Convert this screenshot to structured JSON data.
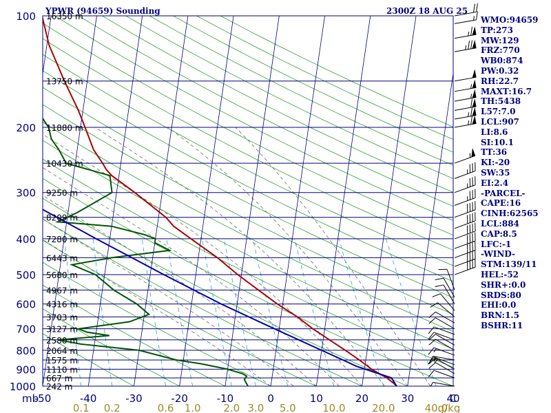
{
  "chart_data": {
    "type": "line",
    "title_left": "YPWR (94659) Sounding",
    "title_right": "2300Z 18 AUG 25",
    "x_axis": {
      "unit_label": "mb",
      "ticks": [
        "-50",
        "-40",
        "-30",
        "-20",
        "-10",
        "0",
        "10",
        "20",
        "30",
        "40",
        "C"
      ],
      "tick_values": [
        -50,
        -40,
        -30,
        -20,
        -10,
        0,
        10,
        20,
        30,
        40
      ],
      "range": [
        -50,
        40
      ]
    },
    "y_axis": {
      "scale": "log-pressure",
      "range": [
        1000,
        100
      ],
      "pressure_labels": [
        "100",
        "200",
        "300",
        "400",
        "500",
        "600",
        "700",
        "800",
        "900",
        "1000"
      ],
      "pressure_values": [
        100,
        200,
        300,
        400,
        500,
        600,
        700,
        800,
        900,
        1000
      ]
    },
    "height_labels": [
      {
        "text": "16350 m",
        "p": 100
      },
      {
        "text": "13750 m",
        "p": 150
      },
      {
        "text": "11880 m",
        "p": 200
      },
      {
        "text": "10430 m",
        "p": 250
      },
      {
        "text": "9250 m",
        "p": 300
      },
      {
        "text": "8209 m",
        "p": 350
      },
      {
        "text": "7280 m",
        "p": 400
      },
      {
        "text": "6443 m",
        "p": 450
      },
      {
        "text": "5680 m",
        "p": 500
      },
      {
        "text": "4967 m",
        "p": 550
      },
      {
        "text": "4316 m",
        "p": 600
      },
      {
        "text": "3703 m",
        "p": 650
      },
      {
        "text": "3127 m",
        "p": 700
      },
      {
        "text": "2580 m",
        "p": 750
      },
      {
        "text": "2064 m",
        "p": 800
      },
      {
        "text": "1575 m",
        "p": 850
      },
      {
        "text": "1110 m",
        "p": 900
      },
      {
        "text": "667 m",
        "p": 950
      },
      {
        "text": "242 m",
        "p": 1000
      }
    ],
    "mixing_ratio_labels": [
      {
        "text": "0.1",
        "value": 0.1
      },
      {
        "text": "0.2",
        "value": 0.2
      },
      {
        "text": "0.6",
        "value": 0.6
      },
      {
        "text": "1.0",
        "value": 1.0
      },
      {
        "text": "2.0",
        "value": 2.0
      },
      {
        "text": "3.0",
        "value": 3.0
      },
      {
        "text": "5.0",
        "value": 5.0
      },
      {
        "text": "10.0",
        "value": 10.0
      },
      {
        "text": "20.0",
        "value": 20.0
      },
      {
        "text": "40.0",
        "value": 40.0
      },
      {
        "text": "g/kg",
        "value": null
      }
    ],
    "series": [
      {
        "name": "",
        "color": "#aa0000",
        "points": [
          {
            "p": 1000,
            "t": 27.6
          },
          {
            "p": 985,
            "t": 27.0
          },
          {
            "p": 950,
            "t": 25.2
          },
          {
            "p": 925,
            "t": 23.4
          },
          {
            "p": 900,
            "t": 21.6
          },
          {
            "p": 850,
            "t": 18.6
          },
          {
            "p": 800,
            "t": 15.2
          },
          {
            "p": 750,
            "t": 11.4
          },
          {
            "p": 700,
            "t": 7.4
          },
          {
            "p": 650,
            "t": 3.6
          },
          {
            "p": 600,
            "t": -1.2
          },
          {
            "p": 550,
            "t": -5.8
          },
          {
            "p": 500,
            "t": -10.8
          },
          {
            "p": 450,
            "t": -15.8
          },
          {
            "p": 400,
            "t": -22.2
          },
          {
            "p": 370,
            "t": -26.4
          },
          {
            "p": 350,
            "t": -28.4
          },
          {
            "p": 300,
            "t": -36.0
          },
          {
            "p": 270,
            "t": -41.6
          },
          {
            "p": 260,
            "t": -43.0
          },
          {
            "p": 250,
            "t": -44.0
          },
          {
            "p": 230,
            "t": -46.4
          },
          {
            "p": 200,
            "t": -49.0
          },
          {
            "p": 180,
            "t": -51.0
          },
          {
            "p": 150,
            "t": -55.0
          },
          {
            "p": 120,
            "t": -59.5
          },
          {
            "p": 100,
            "t": -62.0
          },
          {
            "p": 96,
            "t": -63.0
          }
        ]
      },
      {
        "name": "",
        "color": "#005500",
        "points": [
          {
            "p": 1000,
            "td": -5.0
          },
          {
            "p": 960,
            "td": -6.0
          },
          {
            "p": 940,
            "td": -5.6
          },
          {
            "p": 925,
            "td": -6.6
          },
          {
            "p": 900,
            "td": -10.0
          },
          {
            "p": 870,
            "td": -16.0
          },
          {
            "p": 850,
            "td": -21.5
          },
          {
            "p": 800,
            "td": -30.0
          },
          {
            "p": 770,
            "td": -43.0
          },
          {
            "p": 750,
            "td": -48.0
          },
          {
            "p": 730,
            "td": -37.0
          },
          {
            "p": 715,
            "td": -42.0
          },
          {
            "p": 700,
            "td": -44.0
          },
          {
            "p": 670,
            "td": -33.0
          },
          {
            "p": 640,
            "td": -29.0
          },
          {
            "p": 600,
            "td": -32.0
          },
          {
            "p": 550,
            "td": -37.5
          },
          {
            "p": 500,
            "td": -42.0
          },
          {
            "p": 470,
            "td": -47.5
          },
          {
            "p": 450,
            "td": -39.0
          },
          {
            "p": 430,
            "td": -26.5
          },
          {
            "p": 410,
            "td": -30.0
          },
          {
            "p": 400,
            "td": -30.0
          },
          {
            "p": 390,
            "td": -32.5
          },
          {
            "p": 370,
            "td": -40.0
          },
          {
            "p": 360,
            "td": -52.0
          },
          {
            "p": 340,
            "td": -48.0
          },
          {
            "p": 300,
            "td": -41.0
          },
          {
            "p": 270,
            "td": -42.0
          },
          {
            "p": 250,
            "td": -52.0
          },
          {
            "p": 230,
            "td": -54.0
          },
          {
            "p": 215,
            "td": -56.0
          },
          {
            "p": 200,
            "td": -57.0
          },
          {
            "p": 180,
            "td": -60.0
          },
          {
            "p": 160,
            "td": -66.0
          },
          {
            "p": 140,
            "td": -71.0
          },
          {
            "p": 120,
            "td": -77.0
          },
          {
            "p": 100,
            "td": -82.0
          }
        ]
      },
      {
        "name": "",
        "color": "#0000aa",
        "points": [
          {
            "p": 1000,
            "t": 27.6
          },
          {
            "p": 950,
            "t": 26.2
          },
          {
            "p": 884,
            "t": 18.2
          },
          {
            "p": 850,
            "t": 15.0
          },
          {
            "p": 800,
            "t": 10.0
          },
          {
            "p": 700,
            "t": -1.0
          },
          {
            "p": 600,
            "t": -13.5
          },
          {
            "p": 500,
            "t": -27.0
          },
          {
            "p": 400,
            "t": -43.0
          },
          {
            "p": 300,
            "t": -63.0
          },
          {
            "p": 250,
            "t": -75.0
          },
          {
            "p": 200,
            "t": -87.0
          },
          {
            "p": 150,
            "t": -102.0
          },
          {
            "p": 120,
            "t": -112.0
          },
          {
            "p": 105,
            "t": -117.0
          }
        ]
      }
    ],
    "wind_barbs_side": "right",
    "wind_barbs": [
      {
        "p": 1000,
        "dir": 100,
        "spd": 5
      },
      {
        "p": 950,
        "dir": 110,
        "spd": 10
      },
      {
        "p": 925,
        "dir": 120,
        "spd": 10
      },
      {
        "p": 900,
        "dir": 120,
        "spd": 15
      },
      {
        "p": 875,
        "dir": 110,
        "spd": 15
      },
      {
        "p": 850,
        "dir": 100,
        "spd": 15
      },
      {
        "p": 825,
        "dir": 110,
        "spd": 15
      },
      {
        "p": 800,
        "dir": 120,
        "spd": 10
      },
      {
        "p": 775,
        "dir": 120,
        "spd": 10
      },
      {
        "p": 750,
        "dir": 110,
        "spd": 10
      },
      {
        "p": 725,
        "dir": 110,
        "spd": 10
      },
      {
        "p": 700,
        "dir": 120,
        "spd": 10
      },
      {
        "p": 675,
        "dir": 120,
        "spd": 10
      },
      {
        "p": 650,
        "dir": 130,
        "spd": 10
      },
      {
        "p": 625,
        "dir": 140,
        "spd": 10
      },
      {
        "p": 600,
        "dir": 150,
        "spd": 10
      },
      {
        "p": 575,
        "dir": 150,
        "spd": 10
      },
      {
        "p": 550,
        "dir": 160,
        "spd": 10
      },
      {
        "p": 500,
        "dir": 250,
        "spd": 40
      },
      {
        "p": 475,
        "dir": 250,
        "spd": 40
      },
      {
        "p": 450,
        "dir": 250,
        "spd": 40
      },
      {
        "p": 425,
        "dir": 250,
        "spd": 40
      },
      {
        "p": 400,
        "dir": 250,
        "spd": 40
      },
      {
        "p": 375,
        "dir": 250,
        "spd": 40
      },
      {
        "p": 350,
        "dir": 250,
        "spd": 40
      },
      {
        "p": 325,
        "dir": 250,
        "spd": 35
      },
      {
        "p": 300,
        "dir": 250,
        "spd": 35
      },
      {
        "p": 275,
        "dir": 250,
        "spd": 35
      },
      {
        "p": 250,
        "dir": 250,
        "spd": 55
      },
      {
        "p": 200,
        "dir": 260,
        "spd": 65
      },
      {
        "p": 190,
        "dir": 260,
        "spd": 65
      },
      {
        "p": 180,
        "dir": 260,
        "spd": 60
      },
      {
        "p": 170,
        "dir": 260,
        "spd": 55
      },
      {
        "p": 160,
        "dir": 260,
        "spd": 55
      },
      {
        "p": 150,
        "dir": 260,
        "spd": 50
      },
      {
        "p": 125,
        "dir": 260,
        "spd": 75
      },
      {
        "p": 115,
        "dir": 260,
        "spd": 65
      },
      {
        "p": 105,
        "dir": 260,
        "spd": 15
      },
      {
        "p": 100,
        "dir": 260,
        "spd": 20
      }
    ],
    "grid": true
  },
  "indices": [
    "WMO:94659",
    "TP:273",
    "MW:129",
    "FRZ:770",
    "WB0:874",
    "PW:0.32",
    "RH:22.7",
    "MAXT:16.7",
    "TH:5438",
    "L57:7.0",
    "LCL:907",
    "LI:8.6",
    "SI:10.1",
    "TT:36",
    "KI:-20",
    "SW:35",
    "EI:2.4",
    "-PARCEL-",
    "CAPE:16",
    "CINH:62565",
    "LCL:884",
    "CAP:8.5",
    "LFC:-1",
    "-WIND-",
    "STM:139/11",
    "HEL:-52",
    "SHR+:0.0",
    "SRDS:80",
    "EHI:0.0",
    "BRN:1.5",
    "BSHR:11"
  ],
  "colors": {
    "isobar": "#000080",
    "isotherm": "#000080",
    "dry_adiabat": "#2ca02c",
    "moist_adiabat": "#555555",
    "mixing_ratio": "#2aa0c8",
    "label_blue": "#00007f",
    "label_olive": "#a08a28"
  }
}
